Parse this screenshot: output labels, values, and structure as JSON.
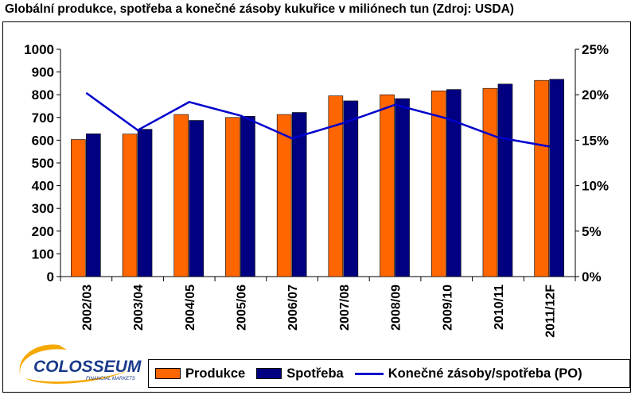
{
  "chart_data": {
    "type": "bar",
    "title": "Globální produkce, spotřeba a konečné zásoby kukuřice v miliónech tun (Zdroj: USDA)",
    "categories": [
      "2002/03",
      "2003/04",
      "2004/05",
      "2005/06",
      "2006/07",
      "2007/08",
      "2008/09",
      "2009/10",
      "2010/11",
      "2011/12F"
    ],
    "series": [
      {
        "name": "Produkce",
        "type": "bar",
        "axis": "left",
        "color": "#ff6600",
        "values": [
          603,
          627,
          713,
          700,
          713,
          795,
          800,
          817,
          828,
          863
        ]
      },
      {
        "name": "Spotřeba",
        "type": "bar",
        "axis": "left",
        "color": "#000080",
        "values": [
          628,
          648,
          687,
          705,
          722,
          773,
          783,
          823,
          847,
          868
        ]
      },
      {
        "name": "Konečné zásoby/spotřeba (PO)",
        "type": "line",
        "axis": "right",
        "color": "#0000cc",
        "values": [
          20.2,
          16.1,
          19.2,
          17.7,
          15.2,
          16.9,
          18.9,
          17.4,
          15.3,
          14.3
        ]
      }
    ],
    "left_axis": {
      "min": 0,
      "max": 1000,
      "step": 100,
      "ticks": [
        "0",
        "100",
        "200",
        "300",
        "400",
        "500",
        "600",
        "700",
        "800",
        "900",
        "1000"
      ]
    },
    "right_axis": {
      "min": 0,
      "max": 25,
      "step": 5,
      "ticks": [
        "0%",
        "5%",
        "10%",
        "15%",
        "20%",
        "25%"
      ]
    },
    "grid": false,
    "legend_position": "bottom-right"
  },
  "logo": {
    "name": "COLOSSEUM",
    "tagline": "FINANCIAL MARKETS"
  }
}
